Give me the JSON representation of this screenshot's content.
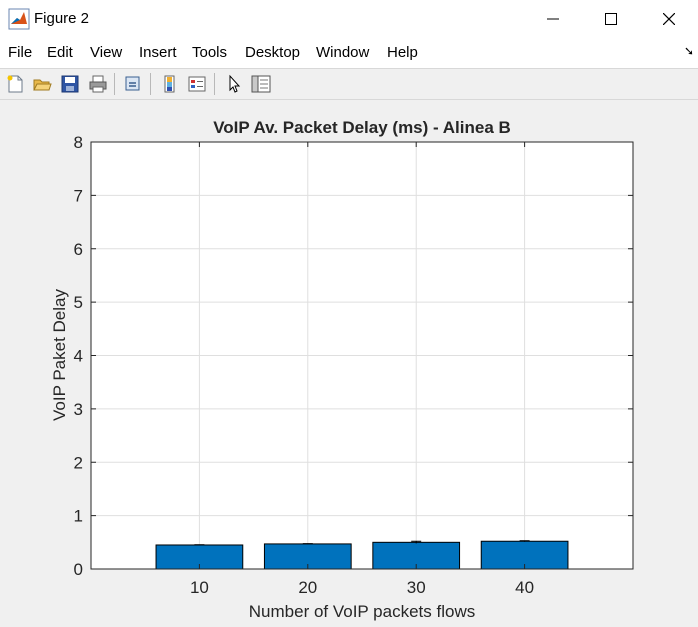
{
  "window": {
    "title": "Figure 2"
  },
  "menu": [
    "File",
    "Edit",
    "View",
    "Insert",
    "Tools",
    "Desktop",
    "Window",
    "Help"
  ],
  "toolbar_icons": [
    "new-figure-icon",
    "open-file-icon",
    "save-icon",
    "print-icon",
    "link-plot-icon",
    "insert-colorbar-icon",
    "insert-legend-icon",
    "edit-plot-cursor-icon",
    "property-inspector-icon"
  ],
  "colors": {
    "bar": "#0072bd",
    "axes_bg": "#ffffff",
    "figure_bg": "#f0f0f0",
    "grid": "#dfdfdf"
  },
  "chart_data": {
    "type": "bar",
    "title": "VoIP Av. Packet Delay (ms) - Alinea B",
    "xlabel": "Number of VoIP packets flows",
    "ylabel": "VoIP Paket Delay",
    "categories": [
      "10",
      "20",
      "30",
      "40"
    ],
    "values": [
      0.45,
      0.47,
      0.5,
      0.52
    ],
    "error": [
      0.005,
      0.005,
      0.02,
      0.01
    ],
    "xlim": [
      0,
      50
    ],
    "ylim": [
      0,
      8
    ],
    "yticks": [
      "0",
      "1",
      "2",
      "3",
      "4",
      "5",
      "6",
      "7",
      "8"
    ],
    "grid": true
  }
}
